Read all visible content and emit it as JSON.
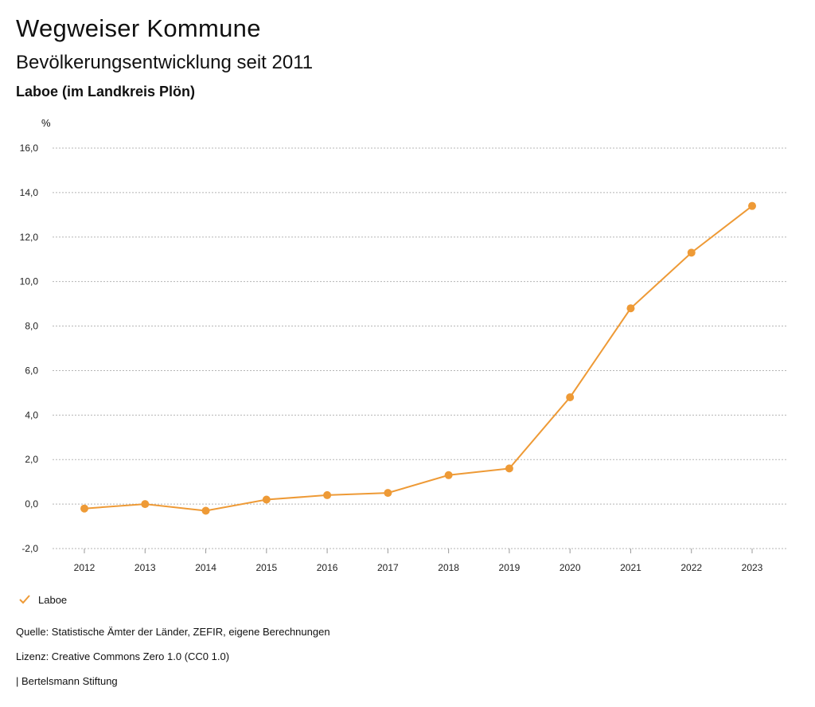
{
  "header": {
    "title": "Wegweiser Kommune",
    "subtitle": "Bevölkerungsentwicklung seit 2011",
    "region": "Laboe (im Landkreis Plön)"
  },
  "chart_data": {
    "type": "line",
    "unit_label": "%",
    "x": [
      "2012",
      "2013",
      "2014",
      "2015",
      "2016",
      "2017",
      "2018",
      "2019",
      "2020",
      "2021",
      "2022",
      "2023"
    ],
    "series": [
      {
        "name": "Laboe",
        "color": "#EE9A36",
        "values": [
          -0.2,
          0.0,
          -0.3,
          0.2,
          0.4,
          0.5,
          1.3,
          1.6,
          4.8,
          8.8,
          11.3,
          13.4
        ]
      }
    ],
    "ylim": [
      -2,
      16
    ],
    "yticks": [
      -2,
      0,
      2,
      4,
      6,
      8,
      10,
      12,
      14,
      16
    ],
    "ytick_labels": [
      "-2,0",
      "0,0",
      "2,0",
      "4,0",
      "6,0",
      "8,0",
      "10,0",
      "12,0",
      "14,0",
      "16,0"
    ],
    "grid": true,
    "legend": "bottom-left"
  },
  "legend": {
    "label": "Laboe"
  },
  "footer": {
    "source": "Quelle: Statistische Ämter der Länder, ZEFIR, eigene Berechnungen",
    "license": "Lizenz: Creative Commons Zero 1.0 (CC0 1.0)",
    "publisher": "| Bertelsmann Stiftung"
  }
}
